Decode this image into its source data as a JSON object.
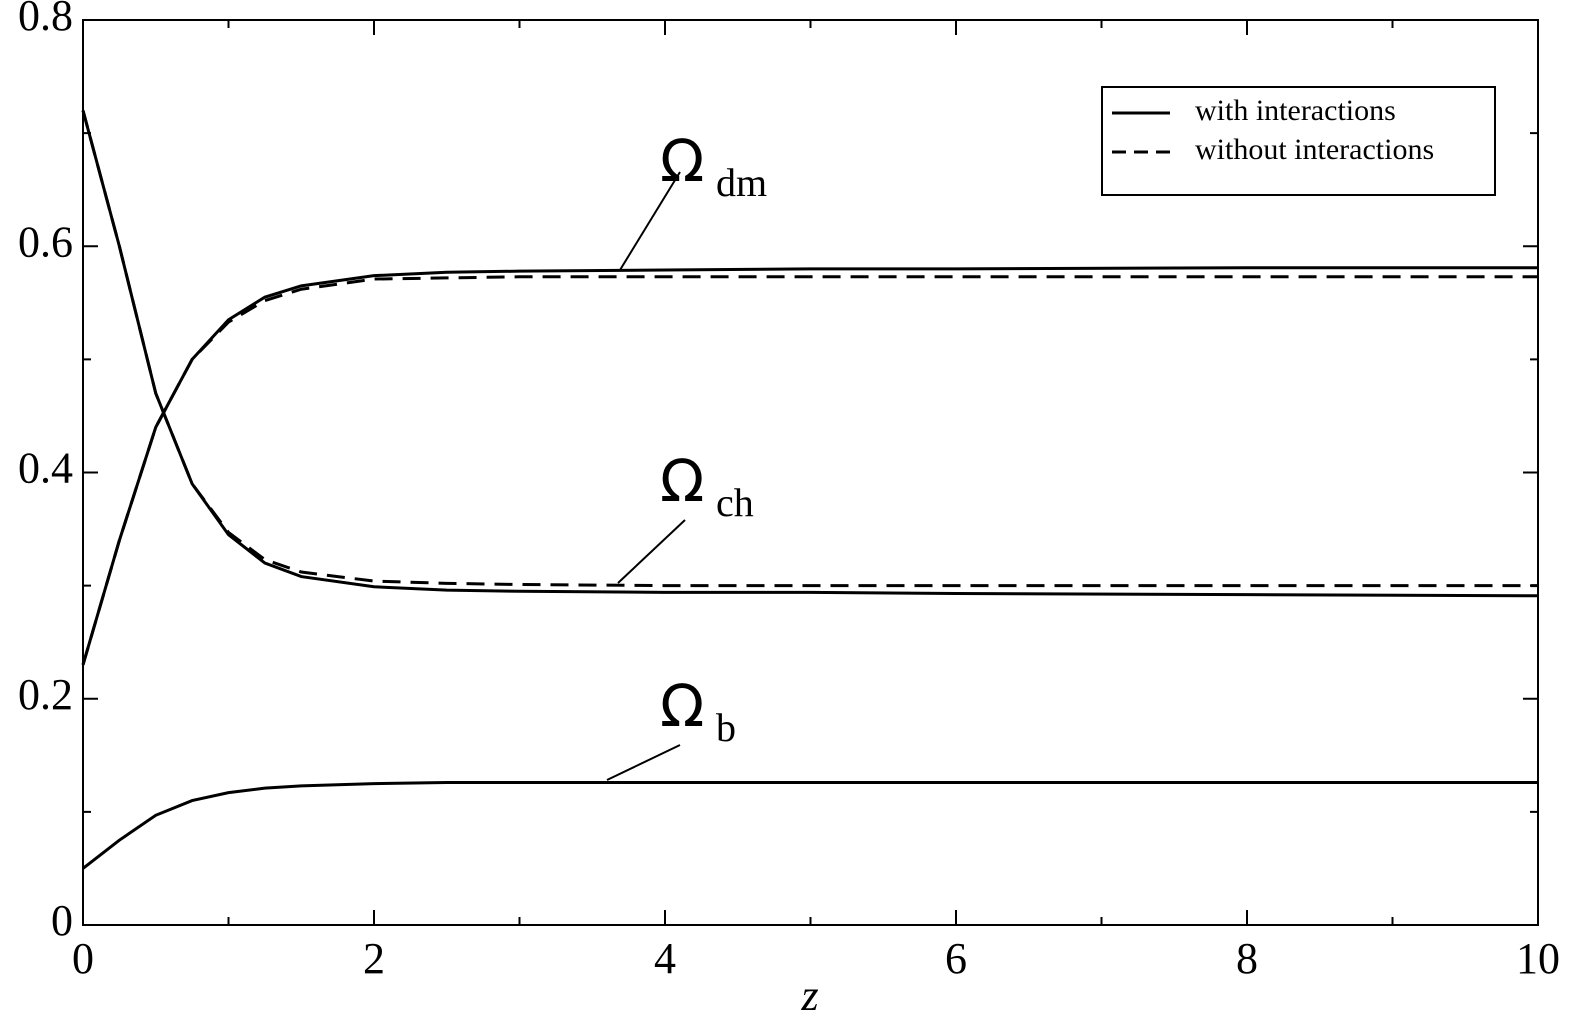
{
  "chart_data": {
    "type": "line",
    "x_label": "z",
    "x": [
      0,
      0.25,
      0.5,
      0.75,
      1,
      1.25,
      1.5,
      2,
      2.5,
      3,
      4,
      5,
      6,
      8,
      10
    ],
    "series": [
      {
        "name": "with interactions",
        "color": "#000000",
        "dash": "solid",
        "values": [
          0.23,
          0.34,
          0.44,
          0.5,
          0.535,
          0.555,
          0.565,
          0.574,
          0.577,
          0.578,
          0.579,
          0.58,
          0.58,
          0.581,
          0.581
        ]
      },
      {
        "name": "without interactions",
        "color": "#000000",
        "dash": "dashed",
        "values": [
          0.23,
          0.34,
          0.44,
          0.5,
          0.533,
          0.552,
          0.562,
          0.571,
          0.572,
          0.573,
          0.573,
          0.573,
          0.573,
          0.573,
          0.573
        ]
      },
      {
        "name": "with interactions",
        "color": "#000000",
        "dash": "solid",
        "values": [
          0.72,
          0.6,
          0.47,
          0.39,
          0.345,
          0.32,
          0.308,
          0.299,
          0.296,
          0.295,
          0.294,
          0.294,
          0.293,
          0.292,
          0.291
        ]
      },
      {
        "name": "without interactions",
        "color": "#000000",
        "dash": "dashed",
        "values": [
          0.72,
          0.6,
          0.47,
          0.39,
          0.347,
          0.323,
          0.312,
          0.304,
          0.302,
          0.301,
          0.3,
          0.3,
          0.3,
          0.3,
          0.3
        ]
      },
      {
        "name": "with interactions",
        "color": "#000000",
        "dash": "solid",
        "values": [
          0.05,
          0.075,
          0.097,
          0.11,
          0.117,
          0.121,
          0.123,
          0.125,
          0.126,
          0.126,
          0.126,
          0.126,
          0.126,
          0.126,
          0.126
        ]
      }
    ],
    "annotations": [
      {
        "symbol": "Ω",
        "subscript": "dm"
      },
      {
        "symbol": "Ω",
        "subscript": "ch"
      },
      {
        "symbol": "Ω",
        "subscript": "b"
      }
    ],
    "xlim": [
      0,
      10
    ],
    "xticks": [
      0,
      2,
      4,
      6,
      8,
      10
    ],
    "xticks_minor": [
      1,
      3,
      5,
      7,
      9
    ],
    "ylim": [
      0,
      0.8
    ],
    "yticks": [
      0,
      0.2,
      0.4,
      0.6,
      0.8
    ],
    "yticks_minor": [
      0.1,
      0.3,
      0.5,
      0.7
    ],
    "legend": "upper right",
    "grid": false
  }
}
